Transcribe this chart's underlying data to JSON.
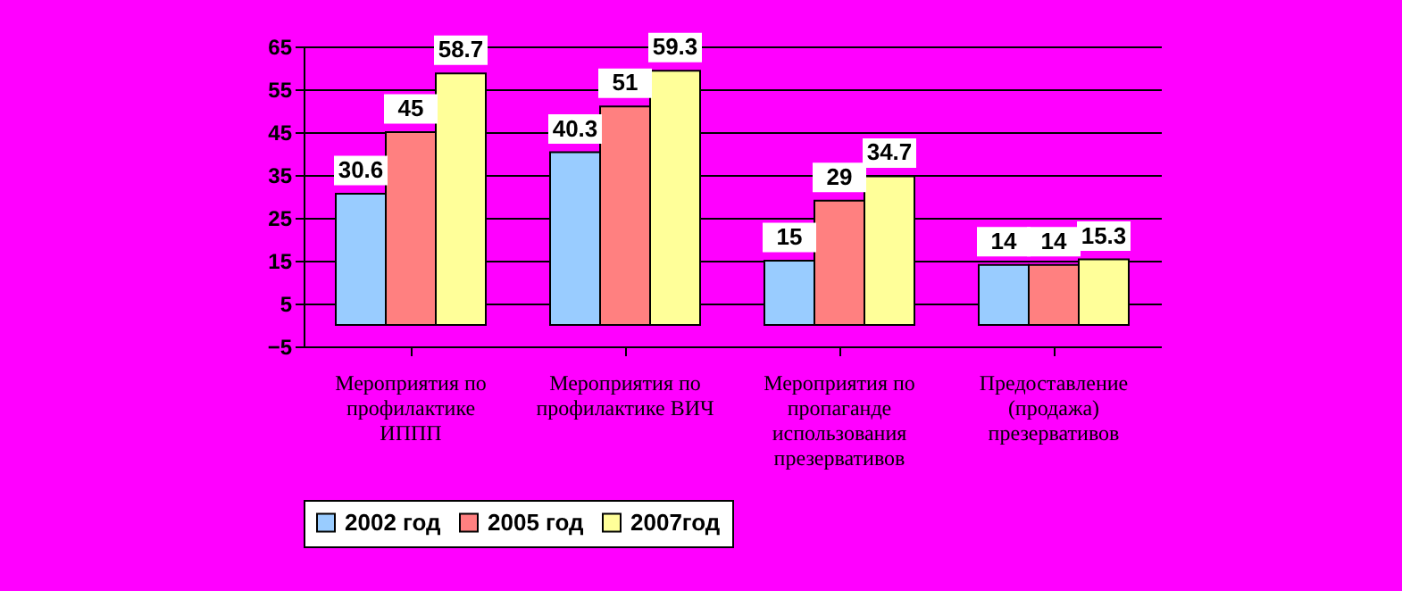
{
  "chart_data": {
    "type": "bar",
    "categories": [
      "Мероприятия по профилактике ИППП",
      "Мероприятия по профилактике ВИЧ",
      "Мероприятия по пропаганде использования презервативов",
      "Предоставление (продажа) презервативов"
    ],
    "series": [
      {
        "name": "2002 год",
        "color": "#99ccff",
        "values": [
          30.6,
          40.3,
          15,
          14
        ]
      },
      {
        "name": "2005 год",
        "color": "#ff8080",
        "values": [
          45,
          51,
          29,
          14
        ]
      },
      {
        "name": "2007год",
        "color": "#ffff99",
        "values": [
          58.7,
          59.3,
          34.7,
          15.3
        ]
      }
    ],
    "ylim": [
      -5,
      65
    ],
    "yticks": [
      -5,
      5,
      15,
      25,
      35,
      45,
      55,
      65
    ],
    "grid": "y",
    "legend": "bottom",
    "data_labels": true
  }
}
